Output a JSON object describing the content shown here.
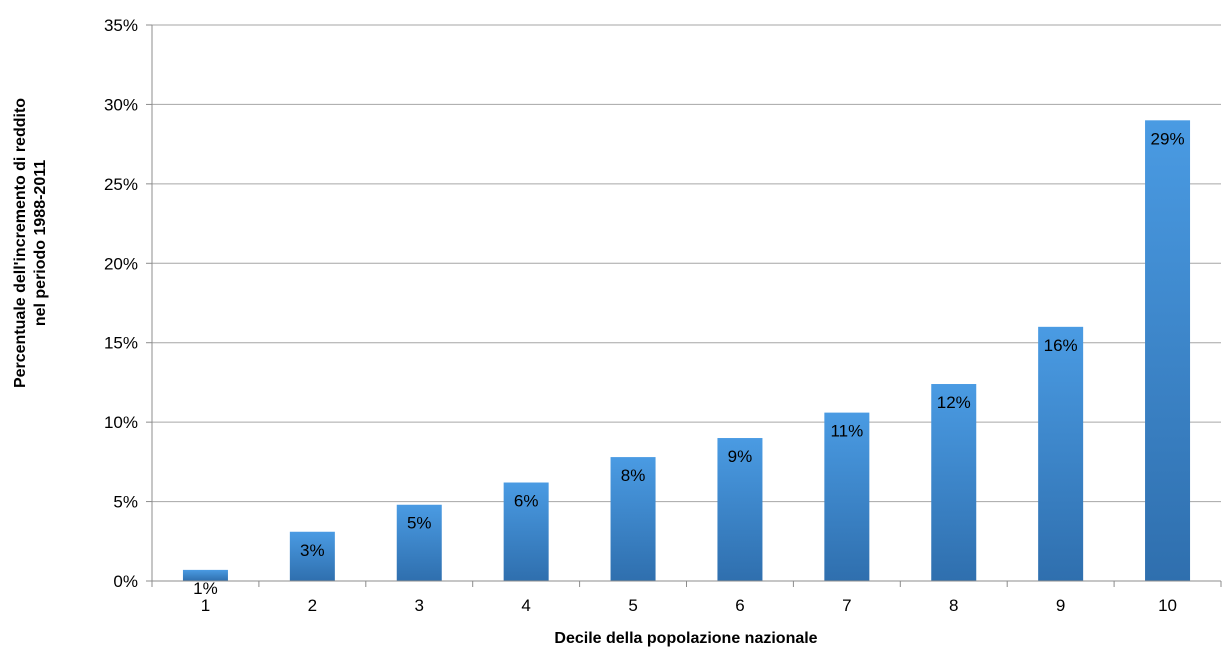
{
  "chart_data": {
    "type": "bar",
    "categories": [
      "1",
      "2",
      "3",
      "4",
      "5",
      "6",
      "7",
      "8",
      "9",
      "10"
    ],
    "values": [
      0.7,
      3.1,
      4.8,
      6.2,
      7.8,
      9.0,
      10.6,
      12.4,
      16.0,
      29.0
    ],
    "data_labels": [
      "1%",
      "3%",
      "5%",
      "6%",
      "8%",
      "9%",
      "11%",
      "12%",
      "16%",
      "29%"
    ],
    "title": "",
    "xlabel": "Decile della popolazione nazionale",
    "ylabel_lines": [
      "Percentuale dell'incremento di reddito",
      "nel periodo 1988-2011"
    ],
    "ylim": [
      0,
      35
    ],
    "yticks": [
      0,
      5,
      10,
      15,
      20,
      25,
      30,
      35
    ],
    "ytick_labels": [
      "0%",
      "5%",
      "10%",
      "15%",
      "20%",
      "25%",
      "30%",
      "35%"
    ],
    "grid": true,
    "legend": "none",
    "colors": {
      "bar_top": "#4a9be3",
      "bar_bottom": "#2f6fae",
      "grid": "#a6a6a6",
      "axis": "#8c8c8c"
    }
  }
}
